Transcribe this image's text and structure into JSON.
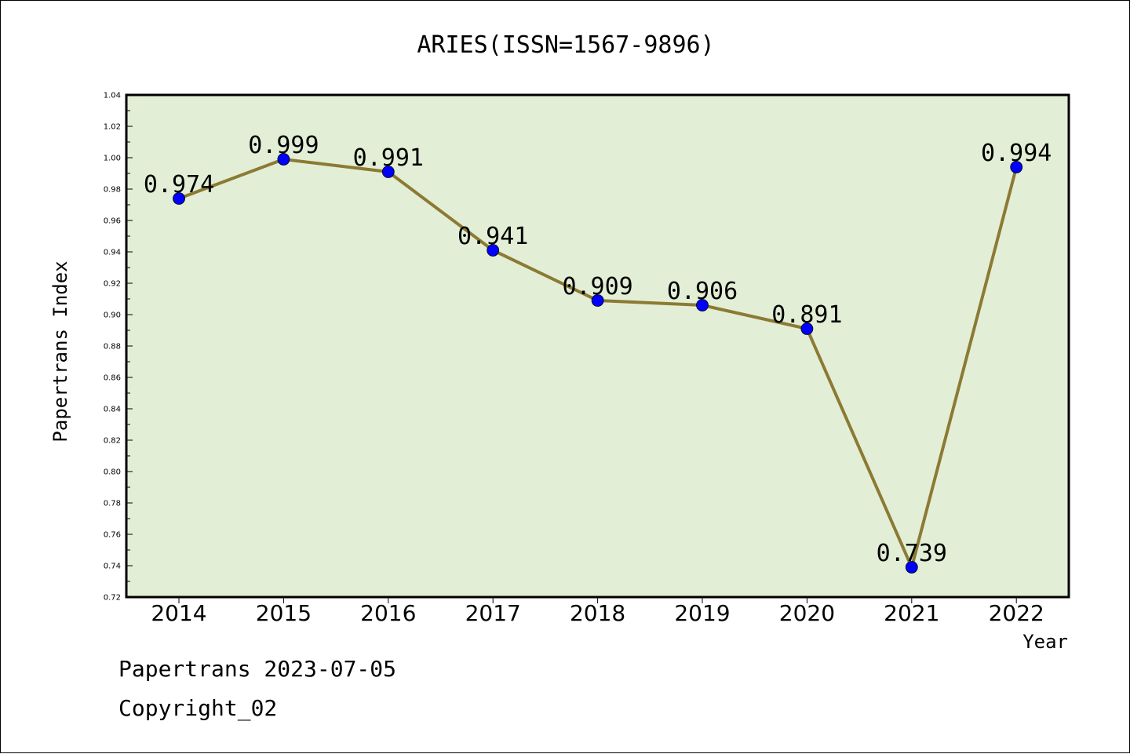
{
  "chart_data": {
    "type": "line",
    "title": "ARIES(ISSN=1567-9896)",
    "xlabel": "Year",
    "ylabel": "Papertrans Index",
    "categories": [
      "2014",
      "2015",
      "2016",
      "2017",
      "2018",
      "2019",
      "2020",
      "2021",
      "2022"
    ],
    "series": [
      {
        "values": [
          0.974,
          0.999,
          0.991,
          0.941,
          0.909,
          0.906,
          0.891,
          0.739,
          0.994
        ],
        "labels": [
          "0.974",
          "0.999",
          "0.991",
          "0.941",
          "0.909",
          "0.906",
          "0.891",
          "0.739",
          "0.994"
        ],
        "line_color": "#8c7a34",
        "marker_color": "#0000ff"
      }
    ],
    "ylim": [
      0.72,
      1.04
    ],
    "yticks": [
      "0.72",
      "0.74",
      "0.76",
      "0.78",
      "0.80",
      "0.82",
      "0.84",
      "0.86",
      "0.88",
      "0.90",
      "0.92",
      "0.94",
      "0.96",
      "0.98",
      "1.00",
      "1.02",
      "1.04"
    ],
    "plot_background": "#e2efd6",
    "grid": false
  },
  "footer": {
    "line1": "Papertrans 2023-07-05",
    "line2": "Copyright_02"
  }
}
